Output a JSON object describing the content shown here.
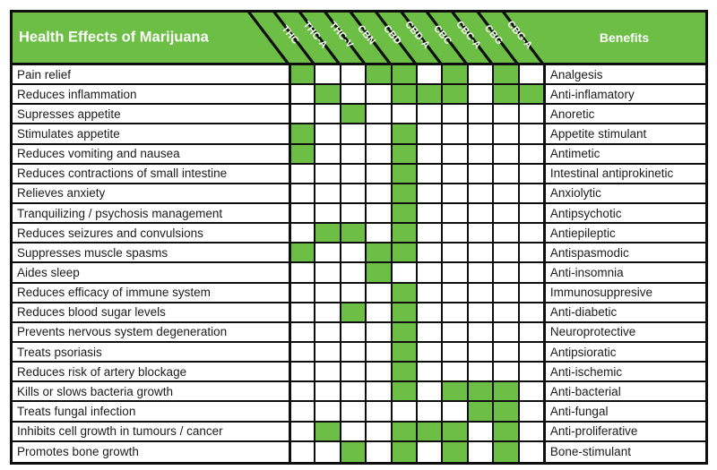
{
  "header": {
    "title": "Health Effects of Marijuana",
    "benefits_label": "Benefits"
  },
  "colors": {
    "green": "#6cbe45",
    "border": "#0e0e0e",
    "header_text": "#ffffff",
    "body_text": "#1b1b1b"
  },
  "chart_data": {
    "type": "heatmap",
    "title": "Health Effects of Marijuana",
    "columns": [
      "THC",
      "THC-A",
      "THC-V",
      "CBN",
      "CBD",
      "CBD-A",
      "CBC",
      "CBC-A",
      "CBG",
      "CBG-A"
    ],
    "rows": [
      "Pain relief",
      "Reduces inflammation",
      "Supresses appetite",
      "Stimulates appetite",
      "Reduces vomiting and nausea",
      "Reduces contractions of small intestine",
      "Relieves anxiety",
      "Tranquilizing / psychosis management",
      "Reduces seizures and convulsions",
      "Suppresses muscle spasms",
      "Aides sleep",
      "Reduces efficacy of  immune system",
      "Reduces blood sugar levels",
      "Prevents nervous system degeneration",
      "Treats psoriasis",
      "Reduces risk of artery blockage",
      "Kills or slows bacteria growth",
      "Treats fungal infection",
      "Inhibits cell growth in tumours / cancer",
      "Promotes bone growth"
    ],
    "benefits": [
      "Analgesis",
      "Anti-inflamatory",
      "Anoretic",
      "Appetite stimulant",
      "Antimetic",
      "Intestinal antiprokinetic",
      "Anxiolytic",
      "Antipsychotic",
      "Antiepileptic",
      "Antispasmodic",
      "Anti-insomnia",
      "Immunosuppresive",
      "Anti-diabetic",
      "Neuroprotective",
      "Antipsioratic",
      "Anti-ischemic",
      "Anti-bacterial",
      "Anti-fungal",
      "Anti-proliferative",
      "Bone-stimulant"
    ],
    "matrix": [
      [
        1,
        0,
        0,
        1,
        1,
        0,
        1,
        0,
        1,
        0
      ],
      [
        0,
        1,
        0,
        0,
        1,
        1,
        1,
        0,
        1,
        1
      ],
      [
        0,
        0,
        1,
        0,
        0,
        0,
        0,
        0,
        0,
        0
      ],
      [
        1,
        0,
        0,
        0,
        1,
        0,
        0,
        0,
        0,
        0
      ],
      [
        1,
        0,
        0,
        0,
        1,
        0,
        0,
        0,
        0,
        0
      ],
      [
        0,
        0,
        0,
        0,
        1,
        0,
        0,
        0,
        0,
        0
      ],
      [
        0,
        0,
        0,
        0,
        1,
        0,
        0,
        0,
        0,
        0
      ],
      [
        0,
        0,
        0,
        0,
        1,
        0,
        0,
        0,
        0,
        0
      ],
      [
        0,
        1,
        1,
        0,
        1,
        0,
        0,
        0,
        0,
        0
      ],
      [
        1,
        0,
        0,
        1,
        1,
        0,
        0,
        0,
        0,
        0
      ],
      [
        0,
        0,
        0,
        1,
        0,
        0,
        0,
        0,
        0,
        0
      ],
      [
        0,
        0,
        0,
        0,
        1,
        0,
        0,
        0,
        0,
        0
      ],
      [
        0,
        0,
        1,
        0,
        1,
        0,
        0,
        0,
        0,
        0
      ],
      [
        0,
        0,
        0,
        0,
        1,
        0,
        0,
        0,
        0,
        0
      ],
      [
        0,
        0,
        0,
        0,
        1,
        0,
        0,
        0,
        0,
        0
      ],
      [
        0,
        0,
        0,
        0,
        1,
        0,
        0,
        0,
        0,
        0
      ],
      [
        0,
        0,
        0,
        0,
        1,
        0,
        1,
        1,
        1,
        0
      ],
      [
        0,
        0,
        0,
        0,
        0,
        0,
        0,
        1,
        1,
        0
      ],
      [
        0,
        1,
        0,
        0,
        1,
        1,
        1,
        0,
        1,
        0
      ],
      [
        0,
        0,
        1,
        0,
        1,
        0,
        1,
        0,
        1,
        0
      ]
    ],
    "cell_on_color": "#6cbe45",
    "legend_position": "none",
    "grid": true
  }
}
